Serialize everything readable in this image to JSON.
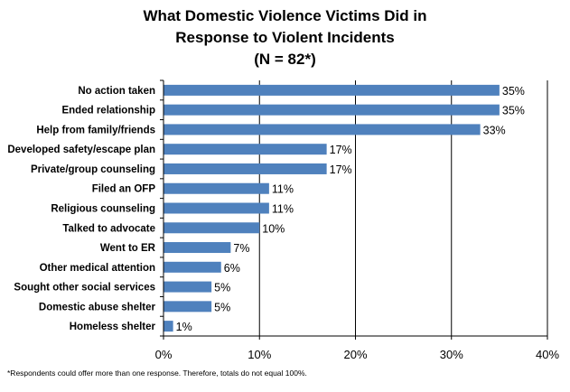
{
  "chart_data": {
    "type": "bar",
    "orientation": "horizontal",
    "title_lines": [
      "What Domestic Violence Victims Did in",
      "Response to Violent Incidents",
      "(N = 82*)"
    ],
    "categories": [
      "No action taken",
      "Ended relationship",
      "Help from family/friends",
      "Developed safety/escape plan",
      "Private/group counseling",
      "Filed an OFP",
      "Religious counseling",
      "Talked to advocate",
      "Went to ER",
      "Other medical attention",
      "Sought other social services",
      "Domestic abuse shelter",
      "Homeless shelter"
    ],
    "values": [
      35,
      35,
      33,
      17,
      17,
      11,
      11,
      10,
      7,
      6,
      5,
      5,
      1
    ],
    "value_labels": [
      "35%",
      "35%",
      "33%",
      "17%",
      "17%",
      "11%",
      "11%",
      "10%",
      "7%",
      "6%",
      "5%",
      "5%",
      "1%"
    ],
    "xlim": [
      0,
      40
    ],
    "xticks": [
      0,
      10,
      20,
      30,
      40
    ],
    "xtick_labels": [
      "0%",
      "10%",
      "20%",
      "30%",
      "40%"
    ],
    "grid": "vertical",
    "legend": "none",
    "bar_color": "#4f81bd",
    "grid_color": "#000000"
  },
  "footnote": "*Respondents could offer more than one response.  Therefore, totals do not equal 100%."
}
